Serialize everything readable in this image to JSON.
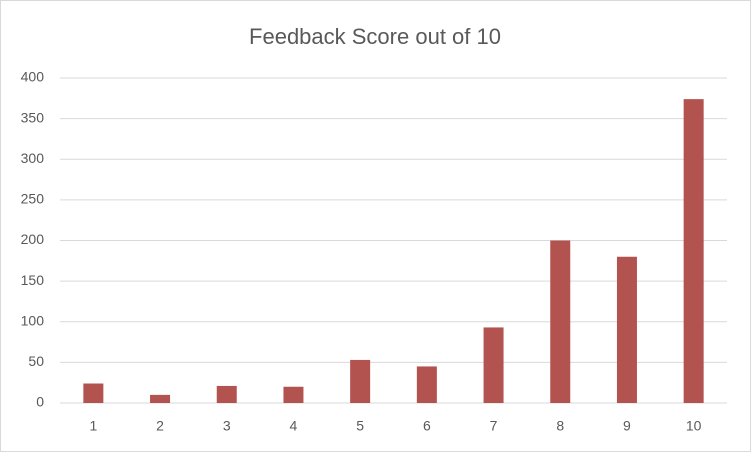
{
  "chart_data": {
    "type": "bar",
    "title": "Feedback Score out of 10",
    "categories": [
      "1",
      "2",
      "3",
      "4",
      "5",
      "6",
      "7",
      "8",
      "9",
      "10"
    ],
    "values": [
      24,
      10,
      21,
      20,
      53,
      45,
      93,
      200,
      180,
      374
    ],
    "color": "#b3534f",
    "ylim": [
      0,
      400
    ],
    "yticks": [
      0,
      50,
      100,
      150,
      200,
      250,
      300,
      350,
      400
    ],
    "grid": true
  }
}
